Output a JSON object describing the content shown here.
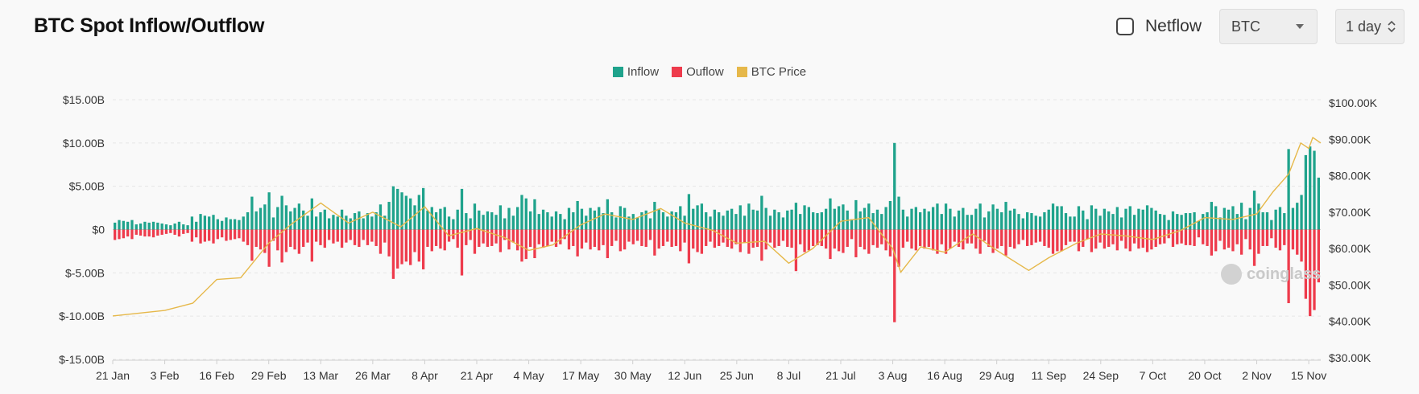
{
  "title": "BTC Spot Inflow/Outflow",
  "controls": {
    "netflow_label": "Netflow",
    "netflow_checked": false,
    "asset_selected": "BTC",
    "interval_selected": "1 day"
  },
  "legend": [
    {
      "label": "Inflow",
      "color": "#1fa38c"
    },
    {
      "label": "Ouflow",
      "color": "#ee3b4c"
    },
    {
      "label": "BTC Price",
      "color": "#e6b84a"
    }
  ],
  "watermark": "coinglass",
  "chart_data": {
    "type": "bar",
    "y_left": {
      "ticks": [
        "$15.00B",
        "$10.00B",
        "$5.00B",
        "$0",
        "$-5.00B",
        "$-10.00B",
        "$-15.00B"
      ],
      "tick_values": [
        15,
        10,
        5,
        0,
        -5,
        -10,
        -15
      ],
      "range": [
        -15,
        15
      ],
      "unit": "B USD"
    },
    "y_right": {
      "ticks": [
        "$100.00K",
        "$90.00K",
        "$80.00K",
        "$70.00K",
        "$60.00K",
        "$50.00K",
        "$40.00K",
        "$30.00K"
      ],
      "tick_values": [
        100,
        90,
        80,
        70,
        60,
        50,
        40,
        30
      ],
      "range": [
        30,
        100
      ],
      "unit": "K USD"
    },
    "x_ticks": [
      "21 Jan",
      "3 Feb",
      "16 Feb",
      "29 Feb",
      "13 Mar",
      "26 Mar",
      "8 Apr",
      "21 Apr",
      "4 May",
      "17 May",
      "30 May",
      "12 Jun",
      "25 Jun",
      "8 Jul",
      "21 Jul",
      "3 Aug",
      "16 Aug",
      "29 Aug",
      "11 Sep",
      "24 Sep",
      "7 Oct",
      "20 Oct",
      "2 Nov",
      "15 Nov"
    ],
    "grid": true,
    "series": [
      {
        "name": "Inflow",
        "values": [
          0.8,
          1.1,
          1.0,
          0.9,
          1.1,
          0.6,
          0.7,
          0.9,
          0.8,
          0.9,
          0.8,
          0.7,
          0.6,
          0.5,
          0.7,
          0.9,
          0.6,
          0.5,
          1.5,
          0.9,
          1.8,
          1.6,
          1.5,
          1.7,
          1.2,
          1.0,
          1.4,
          1.2,
          1.2,
          1.1,
          1.5,
          2.0,
          3.8,
          2.1,
          2.5,
          2.9,
          4.3,
          1.4,
          2.6,
          3.9,
          2.8,
          2.1,
          2.5,
          3.0,
          2.2,
          1.6,
          3.6,
          1.5,
          2.0,
          2.3,
          1.3,
          1.7,
          1.5,
          2.3,
          1.6,
          1.3,
          1.9,
          2.1,
          1.3,
          1.9,
          1.5,
          2.0,
          2.9,
          1.6,
          3.2,
          5.0,
          4.7,
          4.3,
          3.9,
          3.6,
          2.8,
          4.0,
          4.8,
          2.2,
          2.6,
          2.0,
          2.4,
          2.6,
          1.5,
          1.2,
          2.3,
          4.7,
          1.9,
          1.3,
          3.0,
          2.2,
          1.7,
          2.1,
          2.0,
          1.7,
          2.8,
          1.3,
          2.5,
          1.6,
          2.6,
          4.0,
          3.6,
          2.1,
          3.5,
          1.8,
          2.3,
          2.0,
          1.5,
          2.1,
          1.8,
          1.2,
          2.5,
          2.0,
          3.3,
          2.4,
          1.6,
          2.5,
          2.2,
          2.6,
          1.9,
          3.5,
          2.0,
          1.4,
          2.7,
          2.5,
          1.5,
          1.8,
          1.4,
          2.0,
          2.2,
          1.3,
          3.2,
          2.4,
          2.0,
          1.5,
          2.1,
          2.0,
          2.7,
          1.6,
          4.1,
          2.4,
          2.8,
          3.0,
          2.0,
          1.5,
          2.3,
          2.0,
          1.6,
          2.2,
          2.4,
          1.8,
          2.8,
          1.6,
          3.0,
          2.3,
          2.2,
          3.9,
          2.5,
          1.6,
          2.3,
          2.0,
          1.4,
          2.2,
          2.3,
          3.1,
          1.8,
          2.8,
          2.6,
          2.0,
          1.9,
          2.0,
          2.4,
          3.6,
          2.4,
          2.7,
          2.9,
          2.2,
          1.2,
          3.4,
          2.1,
          2.5,
          3.0,
          1.9,
          2.3,
          1.8,
          2.6,
          3.3,
          10.0,
          3.8,
          2.3,
          1.5,
          2.4,
          2.6,
          2.0,
          2.4,
          2.1,
          2.6,
          3.0,
          1.8,
          3.0,
          2.4,
          1.5,
          2.2,
          2.5,
          1.7,
          1.7,
          2.4,
          3.0,
          1.4,
          2.1,
          2.9,
          2.4,
          2.0,
          3.2,
          2.2,
          2.4,
          1.8,
          1.3,
          2.0,
          1.9,
          1.6,
          1.5,
          2.0,
          2.3,
          3.0,
          2.7,
          2.7,
          1.9,
          1.5,
          1.5,
          2.7,
          2.2,
          1.2,
          2.8,
          2.4,
          1.6,
          2.4,
          2.1,
          1.8,
          2.6,
          1.4,
          2.4,
          2.7,
          1.7,
          2.4,
          2.3,
          2.8,
          2.5,
          2.2,
          1.8,
          1.7,
          1.1,
          2.1,
          1.8,
          1.7,
          1.9,
          1.9,
          2.0,
          1.0,
          1.8,
          2.0,
          3.2,
          2.7,
          1.4,
          2.5,
          2.3,
          2.7,
          1.8,
          3.1,
          1.2,
          2.5,
          4.5,
          3.0,
          2.0,
          2.0,
          1.1,
          2.3,
          2.6,
          1.9,
          9.3,
          2.5,
          3.1,
          4.0,
          8.6,
          9.6,
          9.1,
          6.0
        ]
      },
      {
        "name": "Ouflow",
        "values": [
          -1.2,
          -1.1,
          -1.0,
          -0.8,
          -1.1,
          -0.6,
          -0.7,
          -0.8,
          -0.8,
          -0.9,
          -0.7,
          -0.6,
          -0.5,
          -0.4,
          -0.6,
          -0.8,
          -0.5,
          -0.4,
          -1.4,
          -0.9,
          -1.6,
          -1.4,
          -1.3,
          -1.6,
          -1.1,
          -0.9,
          -1.3,
          -1.2,
          -1.1,
          -1.0,
          -1.4,
          -1.8,
          -3.6,
          -2.0,
          -2.3,
          -2.7,
          -4.3,
          -1.3,
          -2.4,
          -3.8,
          -2.6,
          -2.0,
          -2.3,
          -2.8,
          -2.0,
          -1.5,
          -3.7,
          -1.4,
          -1.8,
          -2.1,
          -1.2,
          -1.6,
          -1.4,
          -2.1,
          -1.5,
          -1.2,
          -1.8,
          -2.0,
          -1.2,
          -1.8,
          -1.4,
          -1.9,
          -2.8,
          -1.5,
          -3.1,
          -5.7,
          -4.5,
          -4.0,
          -3.7,
          -4.1,
          -2.6,
          -3.7,
          -4.6,
          -2.0,
          -2.5,
          -1.9,
          -2.2,
          -2.4,
          -1.4,
          -1.1,
          -2.1,
          -5.3,
          -1.8,
          -1.2,
          -2.8,
          -2.0,
          -1.6,
          -2.0,
          -1.9,
          -1.6,
          -2.6,
          -1.2,
          -2.3,
          -1.5,
          -2.4,
          -3.7,
          -3.4,
          -2.0,
          -3.3,
          -1.7,
          -2.1,
          -1.9,
          -1.4,
          -2.0,
          -1.7,
          -1.1,
          -2.3,
          -1.9,
          -3.1,
          -2.2,
          -1.5,
          -2.3,
          -2.0,
          -2.4,
          -1.8,
          -3.3,
          -1.9,
          -1.3,
          -2.5,
          -2.3,
          -1.4,
          -1.7,
          -1.3,
          -1.9,
          -2.0,
          -1.2,
          -3.0,
          -2.2,
          -1.9,
          -1.4,
          -2.0,
          -1.9,
          -2.5,
          -1.5,
          -3.9,
          -2.2,
          -2.6,
          -2.8,
          -1.9,
          -1.4,
          -2.1,
          -1.9,
          -1.5,
          -2.0,
          -2.2,
          -1.7,
          -2.6,
          -1.5,
          -2.8,
          -2.1,
          -2.0,
          -3.6,
          -2.3,
          -1.5,
          -2.1,
          -1.9,
          -1.3,
          -2.0,
          -2.1,
          -4.8,
          -1.7,
          -2.6,
          -2.4,
          -1.9,
          -1.8,
          -1.9,
          -2.2,
          -3.4,
          -2.2,
          -2.5,
          -2.7,
          -2.0,
          -1.1,
          -3.2,
          -2.0,
          -2.3,
          -2.8,
          -1.8,
          -2.1,
          -1.7,
          -2.4,
          -3.1,
          -10.7,
          -4.3,
          -2.1,
          -1.4,
          -2.2,
          -2.4,
          -1.9,
          -2.2,
          -2.0,
          -2.4,
          -2.8,
          -1.7,
          -2.8,
          -2.2,
          -1.4,
          -2.0,
          -2.3,
          -1.6,
          -1.6,
          -2.2,
          -2.8,
          -1.3,
          -2.0,
          -2.7,
          -2.2,
          -1.9,
          -3.0,
          -2.0,
          -2.2,
          -1.7,
          -1.2,
          -1.9,
          -1.8,
          -1.5,
          -1.4,
          -1.9,
          -2.1,
          -2.8,
          -2.5,
          -2.5,
          -1.8,
          -1.4,
          -1.4,
          -2.5,
          -2.0,
          -1.1,
          -2.6,
          -2.2,
          -1.5,
          -2.2,
          -2.0,
          -1.7,
          -2.4,
          -1.3,
          -2.2,
          -2.5,
          -1.6,
          -2.2,
          -2.1,
          -2.6,
          -2.3,
          -2.0,
          -1.7,
          -1.6,
          -1.0,
          -2.0,
          -1.7,
          -1.6,
          -1.8,
          -1.8,
          -1.9,
          -0.9,
          -1.7,
          -1.9,
          -3.0,
          -2.5,
          -1.3,
          -2.3,
          -2.1,
          -2.5,
          -1.7,
          -2.9,
          -1.1,
          -2.3,
          -4.2,
          -2.8,
          -1.9,
          -1.9,
          -1.0,
          -2.1,
          -2.4,
          -1.8,
          -8.5,
          -2.3,
          -2.9,
          -3.7,
          -8.0,
          -10.0,
          -9.3,
          -6.1
        ]
      },
      {
        "name": "BTC Price",
        "unit": "K USD",
        "points": [
          {
            "x": "21 Jan",
            "y": 41.5
          },
          {
            "x": "3 Feb",
            "y": 43.0
          },
          {
            "x": "10 Feb",
            "y": 45.0
          },
          {
            "x": "16 Feb",
            "y": 51.5
          },
          {
            "x": "22 Feb",
            "y": 52.0
          },
          {
            "x": "29 Feb",
            "y": 61.5
          },
          {
            "x": "6 Mar",
            "y": 67.0
          },
          {
            "x": "13 Mar",
            "y": 72.5
          },
          {
            "x": "20 Mar",
            "y": 67.0
          },
          {
            "x": "26 Mar",
            "y": 70.0
          },
          {
            "x": "2 Apr",
            "y": 66.0
          },
          {
            "x": "8 Apr",
            "y": 71.5
          },
          {
            "x": "14 Apr",
            "y": 63.5
          },
          {
            "x": "21 Apr",
            "y": 65.5
          },
          {
            "x": "28 Apr",
            "y": 63.0
          },
          {
            "x": "4 May",
            "y": 59.5
          },
          {
            "x": "10 May",
            "y": 61.0
          },
          {
            "x": "17 May",
            "y": 66.5
          },
          {
            "x": "23 May",
            "y": 69.5
          },
          {
            "x": "30 May",
            "y": 68.0
          },
          {
            "x": "6 Jun",
            "y": 71.0
          },
          {
            "x": "12 Jun",
            "y": 67.0
          },
          {
            "x": "19 Jun",
            "y": 65.0
          },
          {
            "x": "25 Jun",
            "y": 61.5
          },
          {
            "x": "2 Jul",
            "y": 62.0
          },
          {
            "x": "8 Jul",
            "y": 56.0
          },
          {
            "x": "14 Jul",
            "y": 60.0
          },
          {
            "x": "21 Jul",
            "y": 67.5
          },
          {
            "x": "28 Jul",
            "y": 68.5
          },
          {
            "x": "3 Aug",
            "y": 60.0
          },
          {
            "x": "5 Aug",
            "y": 53.5
          },
          {
            "x": "10 Aug",
            "y": 60.5
          },
          {
            "x": "16 Aug",
            "y": 59.0
          },
          {
            "x": "23 Aug",
            "y": 64.0
          },
          {
            "x": "29 Aug",
            "y": 59.5
          },
          {
            "x": "6 Sep",
            "y": 54.0
          },
          {
            "x": "11 Sep",
            "y": 57.5
          },
          {
            "x": "18 Sep",
            "y": 61.5
          },
          {
            "x": "24 Sep",
            "y": 64.0
          },
          {
            "x": "30 Sep",
            "y": 63.5
          },
          {
            "x": "7 Oct",
            "y": 62.5
          },
          {
            "x": "14 Oct",
            "y": 65.0
          },
          {
            "x": "20 Oct",
            "y": 68.5
          },
          {
            "x": "27 Oct",
            "y": 68.0
          },
          {
            "x": "2 Nov",
            "y": 69.5
          },
          {
            "x": "6 Nov",
            "y": 75.5
          },
          {
            "x": "10 Nov",
            "y": 80.5
          },
          {
            "x": "13 Nov",
            "y": 89.0
          },
          {
            "x": "15 Nov",
            "y": 87.5
          },
          {
            "x": "16 Nov",
            "y": 90.5
          },
          {
            "x": "18 Nov",
            "y": 89.0
          }
        ]
      }
    ]
  }
}
